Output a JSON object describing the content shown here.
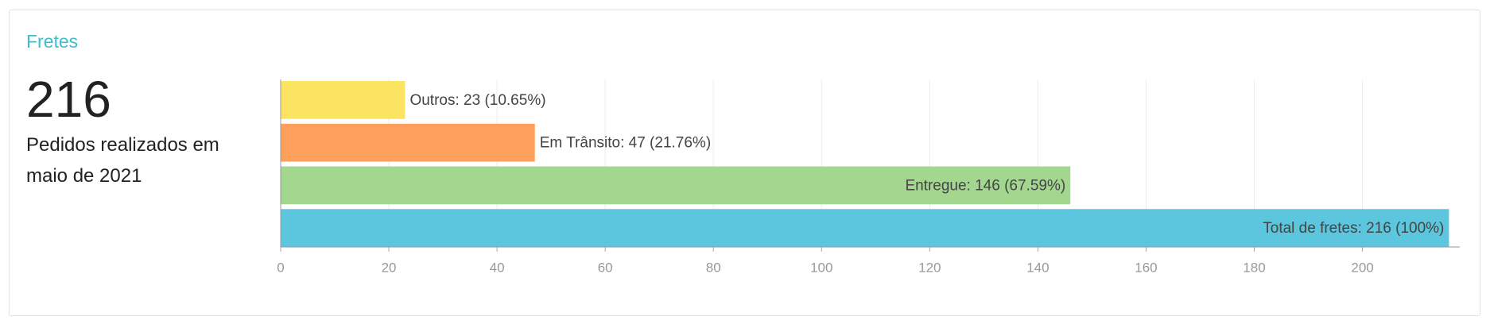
{
  "card": {
    "title": "Fretes",
    "total": 216,
    "caption": "Pedidos realizados em maio de 2021"
  },
  "chart_data": {
    "type": "bar",
    "orientation": "horizontal",
    "values": [
      23,
      47,
      146,
      216
    ],
    "value_labels": [
      "Outros: 23 (10.65%)",
      "Em Trânsito: 47 (21.76%)",
      "Entregue: 146 (67.59%)",
      "Total de fretes: 216 (100%)"
    ],
    "colors": [
      "#fce463",
      "#fea05b",
      "#a3d78f",
      "#5bc6de"
    ],
    "xlim": [
      0,
      218
    ],
    "xticks": [
      0,
      20,
      40,
      60,
      80,
      100,
      120,
      140,
      160,
      180,
      200
    ],
    "grid": true
  }
}
